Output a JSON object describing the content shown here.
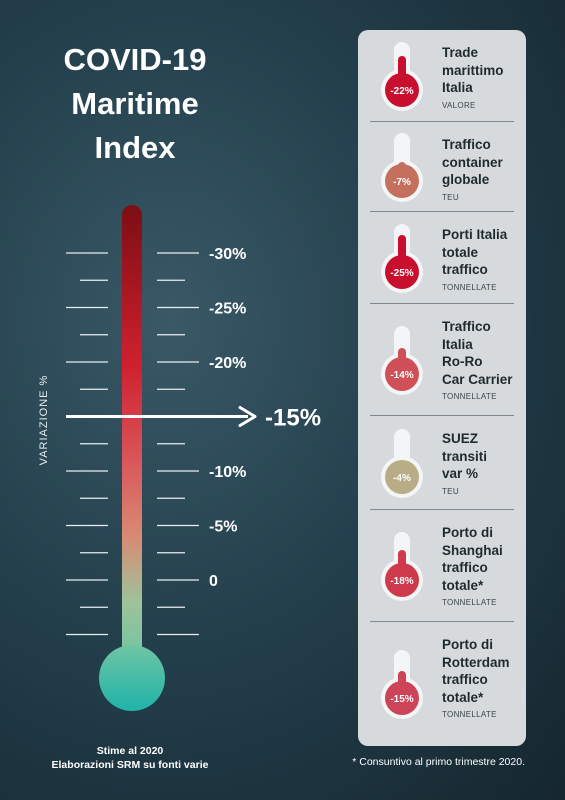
{
  "title": {
    "line1": "COVID-19",
    "line2": "Maritime",
    "line3": "Index"
  },
  "axis_label": "VARIAZIONE %",
  "footer": {
    "line1": "Stime al 2020",
    "line2": "Elaborazioni SRM su fonti varie",
    "note": "* Consuntivo al primo trimestre 2020."
  },
  "colors": {
    "accent_red": "#c4182e",
    "thermo_top": "#7d0d14",
    "thermo_bottom": "#1fb3a9"
  },
  "chart_data": {
    "type": "gauge",
    "ticks": [
      "-30%",
      "-25%",
      "-20%",
      "-15%",
      "-10%",
      "-5%",
      "0"
    ],
    "tick_values": [
      -30,
      -25,
      -20,
      -15,
      -10,
      -5,
      0
    ],
    "indicator": {
      "value": -15,
      "label": "-15%"
    },
    "range": [
      0,
      -30
    ]
  },
  "items": [
    {
      "lines": [
        "Trade",
        "marittimo",
        "Italia"
      ],
      "unit": "VALORE",
      "value": -22,
      "label": "-22%",
      "color": "#c8102e"
    },
    {
      "lines": [
        "Traffico",
        "container",
        "globale"
      ],
      "unit": "TEU",
      "value": -7,
      "label": "-7%",
      "color": "#c5705f"
    },
    {
      "lines": [
        "Porti Italia",
        "totale",
        "traffico"
      ],
      "unit": "TONNELLATE",
      "value": -25,
      "label": "-25%",
      "color": "#c8102e"
    },
    {
      "lines": [
        "Traffico",
        "Italia",
        "Ro-Ro",
        "Car Carrier"
      ],
      "unit": "TONNELLATE",
      "value": -14,
      "label": "-14%",
      "color": "#cf5157"
    },
    {
      "lines": [
        "SUEZ",
        "transiti",
        "var %"
      ],
      "unit": "TEU",
      "value": -4,
      "label": "-4%",
      "color": "#b8ad86"
    },
    {
      "lines": [
        "Porto di",
        "Shanghai",
        "traffico",
        "totale*"
      ],
      "unit": "TONNELLATE",
      "value": -18,
      "label": "-18%",
      "color": "#cd3a4b"
    },
    {
      "lines": [
        "Porto di",
        "Rotterdam",
        "traffico",
        "totale*"
      ],
      "unit": "TONNELLATE",
      "value": -15,
      "label": "-15%",
      "color": "#cd4458"
    }
  ]
}
